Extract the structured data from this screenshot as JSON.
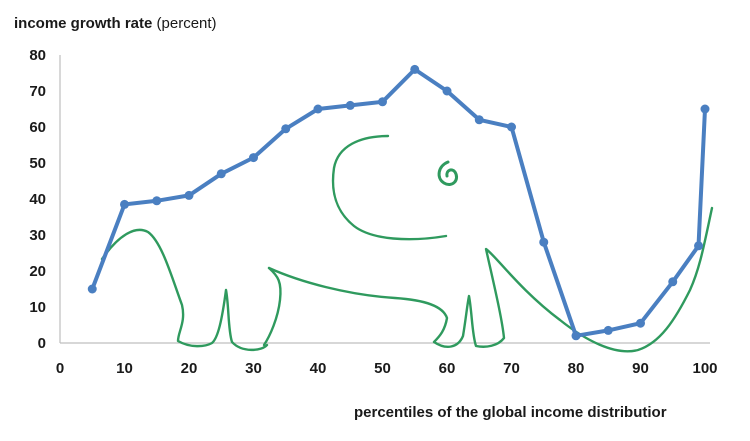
{
  "chart_data": {
    "type": "line",
    "title": "",
    "ylabel": "income growth rate",
    "ylabel_unit": "(percent)",
    "xlabel": "percentiles of the global income distributior",
    "xlim": [
      0,
      100
    ],
    "ylim": [
      0,
      80
    ],
    "x_ticks": [
      "0",
      "10",
      "20",
      "30",
      "40",
      "50",
      "60",
      "70",
      "80",
      "90",
      "100"
    ],
    "y_ticks": [
      "0",
      "10",
      "20",
      "30",
      "40",
      "50",
      "60",
      "70",
      "80"
    ],
    "grid": false,
    "legend": "none",
    "series": [
      {
        "color": "#4a7fc1",
        "x": [
          5,
          10,
          15,
          20,
          25,
          30,
          35,
          40,
          45,
          50,
          55,
          60,
          65,
          70,
          75,
          80,
          85,
          90,
          95,
          99,
          100
        ],
        "y": [
          15,
          38.5,
          39.5,
          41,
          47,
          51.5,
          59.5,
          65,
          66,
          67,
          76,
          70,
          62,
          60,
          28,
          2,
          3.5,
          5.5,
          17,
          27,
          65
        ]
      }
    ],
    "annotation": {
      "description_name": "hand-drawn-elephant-overlay",
      "color": "#2f9a5e"
    }
  }
}
